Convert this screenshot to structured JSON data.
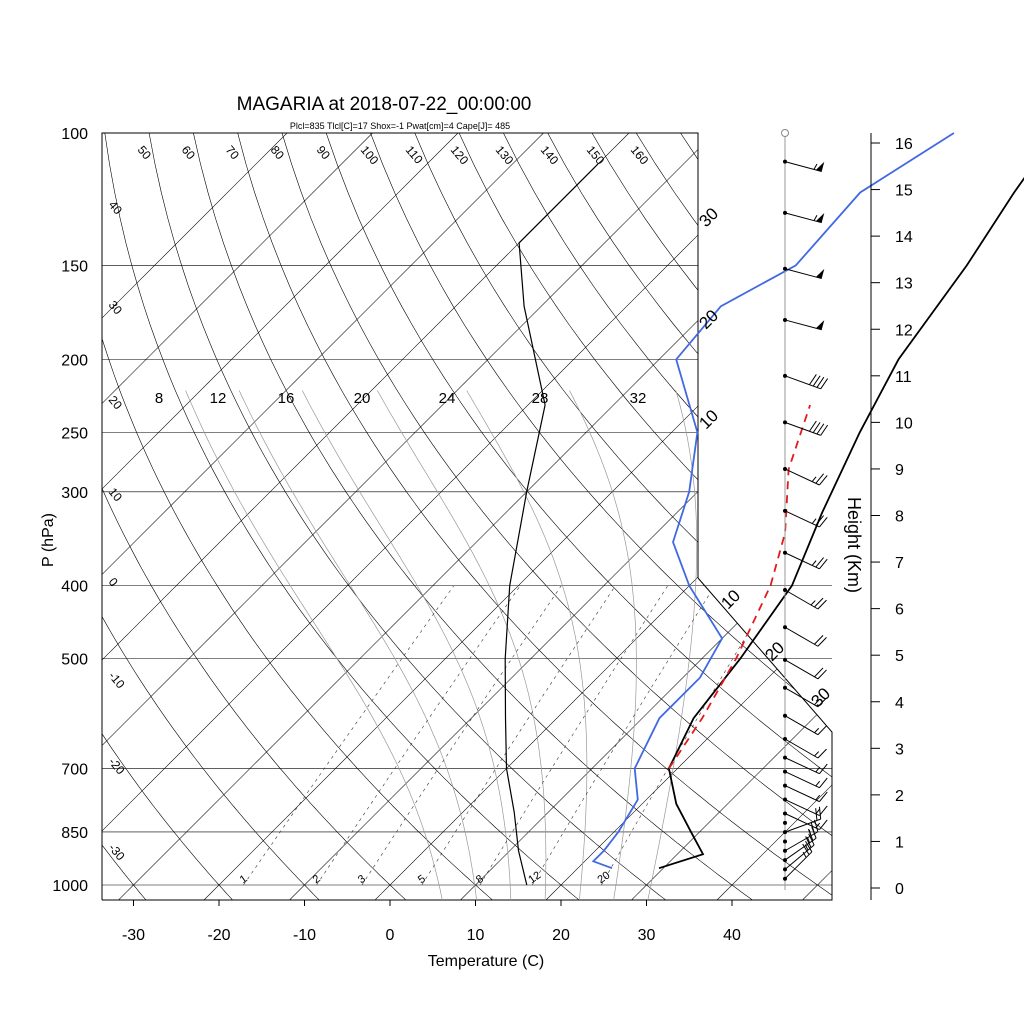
{
  "title": "MAGARIA at 2018-07-22_00:00:00",
  "subtitle": "Plcl=835 Tlcl[C]=17 Shox=-1 Pwat[cm]=4 Cape[J]= 485",
  "colors": {
    "temperature": "#000000",
    "dewpoint": "#4169e1",
    "parcel": "#e31a1c",
    "subtitle": "#a0522d",
    "grid": "#000000"
  },
  "chart_data": {
    "type": "line",
    "title": "MAGARIA at 2018-07-22_00:00:00",
    "xlabel": "Temperature (C)",
    "ylabel": "P (hPa)",
    "y2label": "Height (Km)",
    "xlim": [
      -34,
      50
    ],
    "ylim": [
      1050,
      100
    ],
    "x_ticks": [
      -30,
      -20,
      -10,
      0,
      10,
      20,
      30,
      40
    ],
    "y_ticks": [
      100,
      150,
      200,
      250,
      300,
      400,
      500,
      700,
      850,
      1000
    ],
    "height_ticks": [
      0,
      1,
      2,
      3,
      4,
      5,
      6,
      7,
      8,
      9,
      10,
      11,
      12,
      13,
      14,
      15,
      16
    ],
    "isotherm_labels": {
      "lower": [
        10,
        20,
        30
      ],
      "upper": [
        10,
        20,
        30
      ]
    },
    "dry_adiabat_labels": {
      "top": [
        50,
        60,
        70,
        80,
        90,
        100,
        110,
        120,
        130,
        140,
        150,
        160
      ],
      "left": [
        40,
        30,
        20,
        10,
        0,
        -10,
        -20,
        -30
      ]
    },
    "moist_adiabat_labels": [
      8,
      12,
      16,
      20,
      24,
      28,
      32
    ],
    "mixing_ratio_labels": [
      1,
      2,
      3,
      5,
      8,
      12,
      20
    ],
    "series": [
      {
        "name": "temperature",
        "points": [
          [
            29.5,
            950
          ],
          [
            33,
            910
          ],
          [
            29,
            850
          ],
          [
            24,
            780
          ],
          [
            19,
            700
          ],
          [
            16,
            600
          ],
          [
            14.5,
            500
          ],
          [
            12,
            400
          ],
          [
            7,
            320
          ],
          [
            2,
            250
          ],
          [
            -2,
            200
          ],
          [
            -5,
            150
          ],
          [
            -8,
            120
          ],
          [
            -10,
            100
          ]
        ]
      },
      {
        "name": "dewpoint",
        "points": [
          [
            24,
            950
          ],
          [
            21,
            930
          ],
          [
            21,
            900
          ],
          [
            20.5,
            850
          ],
          [
            19,
            770
          ],
          [
            15,
            700
          ],
          [
            12,
            600
          ],
          [
            12,
            530
          ],
          [
            10,
            470
          ],
          [
            0,
            400
          ],
          [
            -7,
            350
          ],
          [
            -11,
            300
          ],
          [
            -17,
            250
          ],
          [
            -28,
            200
          ],
          [
            -29,
            170
          ],
          [
            -25,
            150
          ],
          [
            -26,
            120
          ],
          [
            -22,
            100
          ]
        ]
      },
      {
        "name": "parcel",
        "points": [
          [
            19,
            700
          ],
          [
            17,
            600
          ],
          [
            14,
            500
          ],
          [
            9.5,
            400
          ],
          [
            5,
            340
          ],
          [
            -2,
            280
          ],
          [
            -7,
            230
          ]
        ]
      },
      {
        "name": "dry-ascent",
        "points": [
          [
            16,
            1000
          ],
          [
            11,
            900
          ],
          [
            6,
            800
          ],
          [
            0,
            700
          ],
          [
            -6,
            600
          ],
          [
            -13,
            500
          ],
          [
            -21,
            400
          ],
          [
            -30,
            300
          ],
          [
            -38,
            230
          ],
          [
            -52,
            170
          ],
          [
            -60,
            140
          ],
          [
            -60,
            110
          ]
        ]
      }
    ],
    "wind_height_levels": [
      0.2,
      0.4,
      0.6,
      0.8,
      1,
      1.2,
      1.4,
      1.6,
      1.9,
      2.2,
      2.5,
      2.8,
      3.2,
      3.7,
      4.3,
      4.9,
      5.6,
      6.4,
      7.2,
      8.1,
      9,
      10,
      11,
      12.2,
      13.3,
      14.5,
      15.6
    ],
    "wind_barbs": [
      {
        "height": 15.6,
        "direction": 285,
        "speed": 55
      },
      {
        "height": 14.5,
        "direction": 285,
        "speed": 55
      },
      {
        "height": 13.3,
        "direction": 285,
        "speed": 50
      },
      {
        "height": 12.2,
        "direction": 285,
        "speed": 50
      },
      {
        "height": 11,
        "direction": 290,
        "speed": 40
      },
      {
        "height": 10,
        "direction": 290,
        "speed": 40
      },
      {
        "height": 9,
        "direction": 295,
        "speed": 25
      },
      {
        "height": 8.1,
        "direction": 295,
        "speed": 25
      },
      {
        "height": 7.2,
        "direction": 295,
        "speed": 25
      },
      {
        "height": 6.4,
        "direction": 300,
        "speed": 25
      },
      {
        "height": 5.6,
        "direction": 300,
        "speed": 20
      },
      {
        "height": 4.9,
        "direction": 300,
        "speed": 20
      },
      {
        "height": 4.3,
        "direction": 300,
        "speed": 15
      },
      {
        "height": 3.7,
        "direction": 300,
        "speed": 15
      },
      {
        "height": 3.2,
        "direction": 300,
        "speed": 15
      },
      {
        "height": 2.8,
        "direction": 295,
        "speed": 15
      },
      {
        "height": 2.5,
        "direction": 295,
        "speed": 15
      },
      {
        "height": 2.2,
        "direction": 295,
        "speed": 15
      },
      {
        "height": 1.9,
        "direction": 295,
        "speed": 15
      },
      {
        "height": 1.6,
        "direction": 295,
        "speed": 15
      },
      {
        "height": 1.2,
        "direction": 250,
        "speed": 20
      },
      {
        "height": 0.8,
        "direction": 240,
        "speed": 25
      },
      {
        "height": 0.6,
        "direction": 235,
        "speed": 25
      },
      {
        "height": 0.4,
        "direction": 230,
        "speed": 25
      },
      {
        "height": 0.2,
        "direction": 225,
        "speed": 25
      }
    ]
  }
}
